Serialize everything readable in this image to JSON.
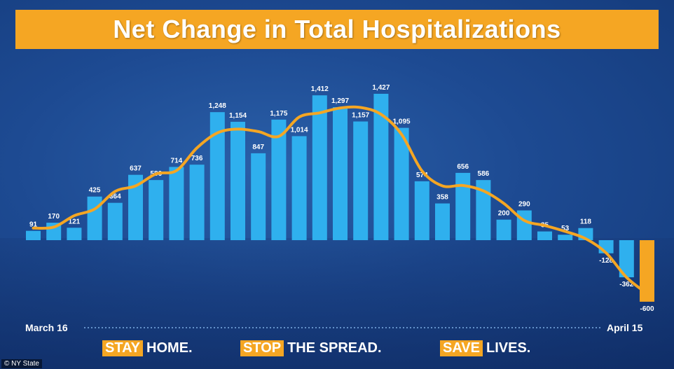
{
  "title": "Net Change in Total Hospitalizations",
  "axis": {
    "start_label": "March 16",
    "end_label": "April 15"
  },
  "slogans": [
    {
      "highlight": "STAY",
      "rest": "HOME."
    },
    {
      "highlight": "STOP",
      "rest": "THE SPREAD."
    },
    {
      "highlight": "SAVE",
      "rest": "LIVES."
    }
  ],
  "credit": "© NY State",
  "colors": {
    "bar": "#2fb0ee",
    "bar_last": "#f5a623",
    "trend": "#f5a623",
    "banner": "#f5a623"
  },
  "chart_data": {
    "type": "bar",
    "title": "Net Change in Total Hospitalizations",
    "x_start": "March 16",
    "x_end": "April 15",
    "values": [
      91,
      170,
      121,
      425,
      364,
      637,
      586,
      714,
      736,
      1248,
      1154,
      847,
      1175,
      1014,
      1412,
      1297,
      1157,
      1427,
      1095,
      574,
      358,
      656,
      586,
      200,
      290,
      85,
      53,
      118,
      -128,
      -362,
      -600
    ],
    "value_labels": [
      "91",
      "170",
      "121",
      "425",
      "364",
      "637",
      "586",
      "714",
      "736",
      "1,248",
      "1,154",
      "847",
      "1,175",
      "1,014",
      "1,412",
      "1,297",
      "1,157",
      "1,427",
      "1,095",
      "574",
      "358",
      "656",
      "586",
      "200",
      "290",
      "85",
      "53",
      "118",
      "-128",
      "-362",
      "-600"
    ],
    "ylim": [
      -600,
      1427
    ],
    "grid": false,
    "overlay": "smoothed trend line"
  }
}
